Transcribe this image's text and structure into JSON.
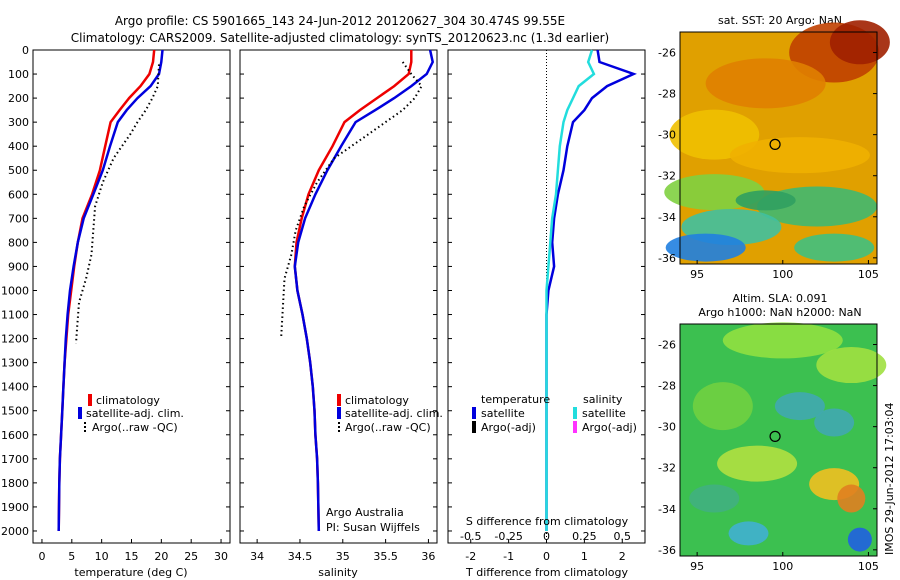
{
  "header": {
    "line1": "Argo profile: CS 5901665_143 24-Jun-2012 20120627_304 30.474S 99.55E",
    "line2": "Climatology: CARS2009. Satellite-adjusted climatology: synTS_20120623.nc (1.3d earlier)"
  },
  "footer": {
    "owner": "Argo Australia",
    "pi": "PI: Susan Wijffels",
    "stamp": "IMOS 29-Jun-2012 17:03:04"
  },
  "colors": {
    "climatology": "#ee0000",
    "satellite": "#0000dd",
    "argo": "#000000",
    "sal_satellite": "#22dddd",
    "sal_argo": "#ff33ff"
  },
  "maps": {
    "sst": {
      "title": "sat. SST: 20 Argo: NaN",
      "x_ticks": [
        "95",
        "100",
        "105"
      ],
      "y_ticks": [
        "-26",
        "-28",
        "-30",
        "-32",
        "-34",
        "-36"
      ],
      "marker_lon": 99.55,
      "marker_lat": -30.474
    },
    "sla": {
      "title1": "Altim. SLA: 0.091",
      "title2": "Argo h1000: NaN h2000: NaN",
      "x_ticks": [
        "95",
        "100",
        "105"
      ],
      "y_ticks": [
        "-26",
        "-28",
        "-30",
        "-32",
        "-34",
        "-36"
      ],
      "marker_lon": 99.55,
      "marker_lat": -30.474
    }
  },
  "chart_data": [
    {
      "type": "line",
      "name": "temperature",
      "xlabel": "temperature (deg C)",
      "ylabel": "",
      "xlim": [
        -1.5,
        31.5
      ],
      "ylim": [
        2050,
        0
      ],
      "x_ticks": [
        "0",
        "5",
        "10",
        "15",
        "20",
        "25",
        "30"
      ],
      "y_ticks": [
        "0",
        "100",
        "200",
        "300",
        "400",
        "500",
        "600",
        "700",
        "800",
        "900",
        "1000",
        "1100",
        "1200",
        "1300",
        "1400",
        "1500",
        "1600",
        "1700",
        "1800",
        "1900",
        "2000"
      ],
      "legend": [
        "climatology",
        "satellite-adj. clim.",
        "Argo(..raw -QC)"
      ],
      "series": [
        {
          "name": "climatology",
          "style": "line",
          "color": "#ee0000",
          "x": [
            18.8,
            18.6,
            18.0,
            16.5,
            14.6,
            13.0,
            11.5,
            10.6,
            9.7,
            8.4,
            6.8,
            6.0,
            5.4,
            4.9,
            4.4,
            4.1,
            3.8,
            3.6,
            3.4,
            3.2,
            3.0,
            2.9,
            2.8
          ],
          "y": [
            0,
            50,
            100,
            150,
            200,
            250,
            300,
            400,
            500,
            600,
            700,
            800,
            900,
            1000,
            1100,
            1200,
            1300,
            1400,
            1500,
            1600,
            1700,
            1800,
            2000
          ]
        },
        {
          "name": "satellite-adj. clim.",
          "style": "line",
          "color": "#0000dd",
          "x": [
            20.2,
            20.0,
            19.6,
            18.2,
            16.0,
            14.2,
            12.7,
            11.4,
            10.2,
            8.6,
            7.0,
            6.0,
            5.3,
            4.7,
            4.3,
            4.0,
            3.8,
            3.6,
            3.4,
            3.2,
            3.0,
            2.9,
            2.8
          ],
          "y": [
            0,
            50,
            100,
            150,
            200,
            250,
            300,
            400,
            500,
            600,
            700,
            800,
            900,
            1000,
            1100,
            1200,
            1300,
            1400,
            1500,
            1600,
            1700,
            1800,
            2000
          ]
        },
        {
          "name": "Argo(..raw -QC)",
          "style": "dots",
          "color": "#000000",
          "x": [
            19.6,
            19.5,
            19.4,
            18.5,
            17.4,
            16.0,
            14.8,
            13.4,
            12.0,
            10.2,
            8.9,
            8.6,
            8.3,
            7.4,
            6.2,
            5.9,
            5.7
          ],
          "y": [
            60,
            100,
            150,
            200,
            250,
            300,
            350,
            400,
            450,
            550,
            650,
            750,
            850,
            950,
            1050,
            1150,
            1220
          ]
        }
      ]
    },
    {
      "type": "line",
      "name": "salinity",
      "xlabel": "salinity",
      "ylabel": "",
      "xlim": [
        33.8,
        36.1
      ],
      "ylim": [
        2050,
        0
      ],
      "x_ticks": [
        "34",
        "34.5",
        "35",
        "35.5",
        "36"
      ],
      "legend": [
        "climatology",
        "satellite-adj. clim.",
        "Argo(..raw -QC)"
      ],
      "series": [
        {
          "name": "climatology",
          "style": "line",
          "color": "#ee0000",
          "x": [
            35.8,
            35.8,
            35.77,
            35.6,
            35.4,
            35.2,
            35.02,
            34.88,
            34.72,
            34.6,
            34.52,
            34.46,
            34.44,
            34.47,
            34.53,
            34.58,
            34.62,
            34.65,
            34.67,
            34.68,
            34.7,
            34.71,
            34.72
          ],
          "y": [
            0,
            50,
            100,
            150,
            200,
            250,
            300,
            400,
            500,
            600,
            700,
            800,
            900,
            1000,
            1100,
            1200,
            1300,
            1400,
            1500,
            1600,
            1700,
            1800,
            2000
          ]
        },
        {
          "name": "satellite-adj. clim.",
          "style": "line",
          "color": "#0000dd",
          "x": [
            36.02,
            36.05,
            35.98,
            35.8,
            35.6,
            35.38,
            35.15,
            34.98,
            34.82,
            34.68,
            34.56,
            34.48,
            34.44,
            34.47,
            34.53,
            34.58,
            34.62,
            34.65,
            34.67,
            34.68,
            34.7,
            34.71,
            34.72
          ],
          "y": [
            0,
            50,
            100,
            150,
            200,
            250,
            300,
            400,
            500,
            600,
            700,
            800,
            900,
            1000,
            1100,
            1200,
            1300,
            1400,
            1500,
            1600,
            1700,
            1800,
            2000
          ]
        },
        {
          "name": "Argo(..raw -QC)",
          "style": "dots",
          "color": "#000000",
          "x": [
            35.7,
            35.8,
            35.92,
            35.84,
            35.7,
            35.5,
            35.3,
            35.1,
            34.9,
            34.7,
            34.55,
            34.45,
            34.4,
            34.32,
            34.28
          ],
          "y": [
            50,
            100,
            150,
            200,
            250,
            300,
            350,
            400,
            450,
            550,
            650,
            750,
            850,
            950,
            1200
          ]
        }
      ]
    },
    {
      "type": "line",
      "name": "differences",
      "xlabel": "T difference from climatology",
      "xlabel2": "S difference from climatology",
      "xlim": [
        -2.6,
        2.6
      ],
      "ylim": [
        2050,
        0
      ],
      "x_ticks": [
        "-2",
        "-1",
        "0",
        "1",
        "2"
      ],
      "x2_ticks": [
        "-0.5",
        "-0.25",
        "0",
        "0.25",
        "0.5"
      ],
      "legend_t_title": "temperature",
      "legend_s_title": "salinity",
      "legend_t": [
        "satellite",
        "Argo(-adj)"
      ],
      "legend_s": [
        "satellite",
        "Argo(-adj)"
      ],
      "series": [
        {
          "name": "temperature satellite",
          "style": "line",
          "color": "#0000dd",
          "x": [
            1.35,
            1.4,
            2.3,
            1.6,
            1.2,
            1.0,
            0.7,
            0.55,
            0.45,
            0.3,
            0.2,
            0.15,
            0.2,
            0.05,
            0.0,
            0.0,
            0.0,
            0.0,
            0.0,
            0.0,
            0.0,
            0.0,
            0.0
          ],
          "y": [
            0,
            50,
            100,
            150,
            200,
            250,
            300,
            400,
            500,
            600,
            700,
            800,
            900,
            1000,
            1100,
            1200,
            1300,
            1400,
            1500,
            1600,
            1700,
            1800,
            2000
          ]
        },
        {
          "name": "salinity satellite",
          "style": "line",
          "color": "#22dddd",
          "x": [
            1.2,
            1.1,
            1.25,
            0.85,
            0.7,
            0.55,
            0.45,
            0.35,
            0.3,
            0.25,
            0.15,
            0.1,
            0.05,
            0.0,
            0.0,
            0.0,
            0.0,
            0.0,
            0.0,
            0.0,
            0.0,
            0.0,
            0.0
          ],
          "y": [
            0,
            50,
            100,
            150,
            200,
            250,
            300,
            400,
            500,
            600,
            700,
            800,
            900,
            1000,
            1100,
            1200,
            1300,
            1400,
            1500,
            1600,
            1700,
            1800,
            2000
          ]
        }
      ]
    }
  ]
}
